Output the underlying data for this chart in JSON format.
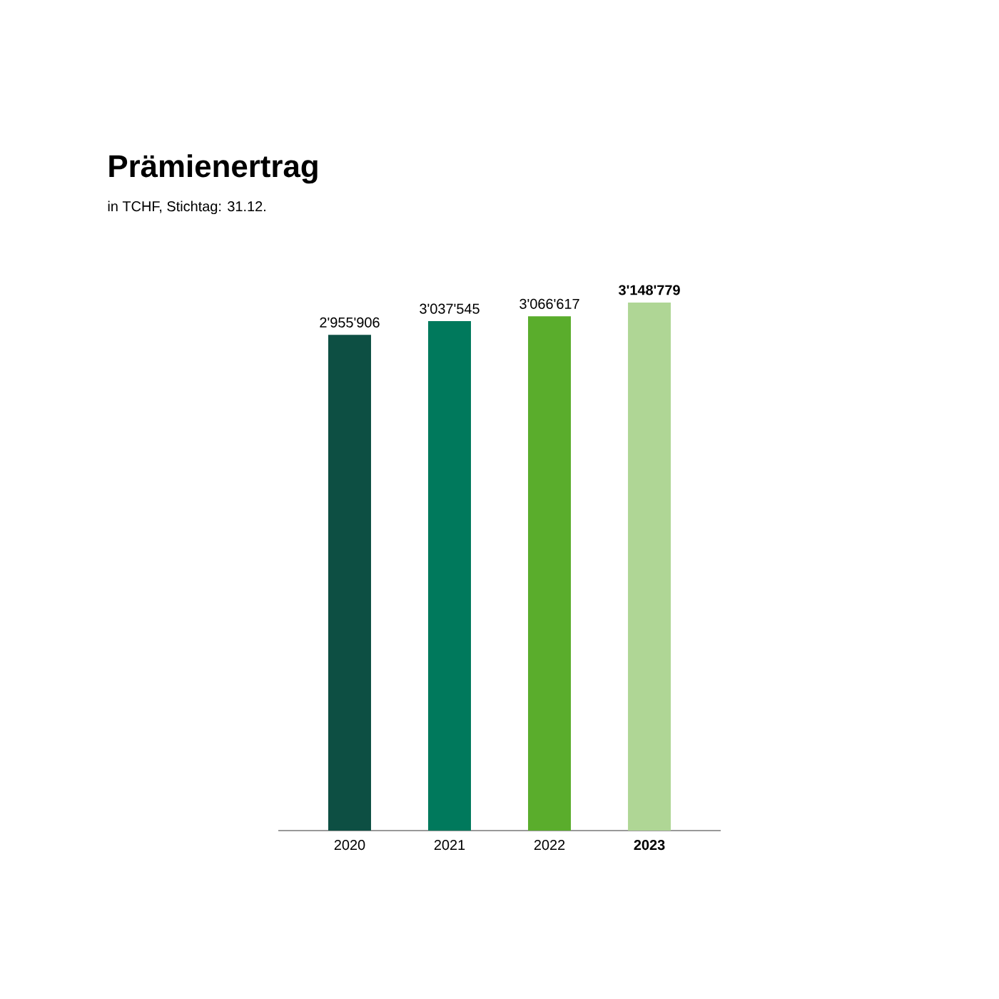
{
  "chart_data": {
    "type": "bar",
    "title": "Prämienertrag",
    "subtitle": "in TCHF, Stichtag: 31.12.",
    "categories": [
      "2020",
      "2021",
      "2022",
      "2023"
    ],
    "values": [
      2955906,
      3037545,
      3066617,
      3148779
    ],
    "colors": [
      "#0d4f43",
      "#00795c",
      "#5aad2c",
      "#afd695"
    ],
    "value_labels": [
      "2'955'906",
      "3'037'545",
      "3'066'617",
      "3'148'779"
    ]
  }
}
